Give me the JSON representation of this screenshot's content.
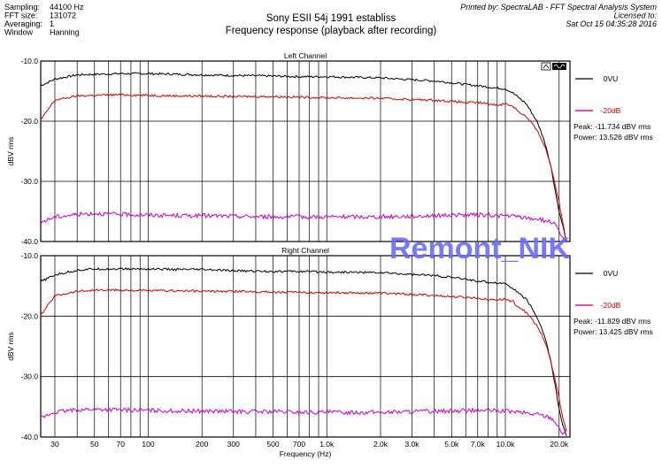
{
  "header": {
    "info": [
      {
        "label": "Sampling:",
        "value": "44100 Hz"
      },
      {
        "label": "FFT size:",
        "value": "131072"
      },
      {
        "label": "Averaging:",
        "value": "1"
      },
      {
        "label": "Window",
        "value": "Hanning"
      }
    ],
    "title": "Sony ESII 54j 1991 establiss",
    "subtitle": "Frequency response (playback after recording)",
    "printed_by": "Printed by: SpectraLAB - FFT Spectral Analysis System",
    "licensed_to": "Licensed to:",
    "date": "Sat Oct 15 04:35:28 2016"
  },
  "watermark": "Remont_NIK",
  "colors": {
    "black": "#000000",
    "red": "#d40000",
    "magenta": "#cc00cc",
    "watermark": "#6a6aff"
  },
  "chart_data": [
    {
      "type": "line",
      "title": "Left Channel",
      "xlabel": "Frequency (Hz)",
      "ylabel": "dBV rms",
      "x_scale": "log",
      "xlim": [
        25,
        23000
      ],
      "ylim": [
        -40.0,
        -10.0
      ],
      "y_ticks": [
        "-10.0",
        "-20.0",
        "-30.0",
        "-40.0"
      ],
      "x_tick_labels": [
        {
          "value": 30,
          "label": "30"
        },
        {
          "value": 50,
          "label": "50"
        },
        {
          "value": 70,
          "label": "70"
        },
        {
          "value": 100,
          "label": "100"
        },
        {
          "value": 200,
          "label": "200"
        },
        {
          "value": 300,
          "label": "300"
        },
        {
          "value": 500,
          "label": "500"
        },
        {
          "value": 700,
          "label": "700"
        },
        {
          "value": 1000,
          "label": "1.0k"
        },
        {
          "value": 2000,
          "label": "2.0k"
        },
        {
          "value": 3000,
          "label": "3.0k"
        },
        {
          "value": 5000,
          "label": "5.0k"
        },
        {
          "value": 7000,
          "label": "7.0k"
        },
        {
          "value": 10000,
          "label": "10.0k"
        },
        {
          "value": 20000,
          "label": "20.0k"
        }
      ],
      "grid": true,
      "legend_position": "right",
      "series": [
        {
          "name": "0VU",
          "color": "#000000",
          "x": [
            25,
            30,
            40,
            50,
            70,
            100,
            150,
            200,
            300,
            500,
            700,
            1000,
            2000,
            3000,
            4000,
            5000,
            6000,
            7000,
            8000,
            9000,
            10000,
            11000,
            12000,
            13000,
            14000,
            15000,
            16000,
            17000,
            18000,
            19000,
            20000,
            21000,
            22000
          ],
          "y": [
            -14.1,
            -13.0,
            -12.3,
            -12.2,
            -12.1,
            -12.1,
            -12.2,
            -12.3,
            -12.4,
            -12.5,
            -12.6,
            -12.6,
            -12.8,
            -13.1,
            -13.3,
            -13.6,
            -13.9,
            -14.1,
            -14.3,
            -14.5,
            -14.6,
            -15.3,
            -16.2,
            -17.0,
            -18.5,
            -20.0,
            -22.0,
            -24.5,
            -27.5,
            -31.5,
            -35.0,
            -37.5,
            -40.0
          ]
        },
        {
          "name": "-20dB",
          "color": "#d40000",
          "x": [
            25,
            30,
            40,
            50,
            70,
            100,
            150,
            200,
            300,
            500,
            700,
            1000,
            2000,
            3000,
            4000,
            5000,
            6000,
            7000,
            8000,
            9000,
            10000,
            11000,
            12000,
            13000,
            14000,
            15000,
            16000,
            17000,
            18000,
            19000,
            20000,
            21000,
            22000
          ],
          "y": [
            -19.8,
            -16.5,
            -15.8,
            -15.7,
            -15.6,
            -15.7,
            -15.8,
            -15.8,
            -15.9,
            -15.9,
            -16.0,
            -16.1,
            -16.2,
            -16.4,
            -16.5,
            -16.7,
            -16.9,
            -16.9,
            -17.1,
            -17.3,
            -17.1,
            -17.5,
            -18.5,
            -19.2,
            -20.3,
            -21.5,
            -23.0,
            -25.0,
            -27.5,
            -30.5,
            -33.5,
            -37.0,
            -40.0
          ]
        },
        {
          "name": "",
          "color": "#cc00cc",
          "x": [
            25,
            30,
            40,
            50,
            70,
            100,
            150,
            200,
            300,
            500,
            700,
            1000,
            2000,
            3000,
            4000,
            5000,
            6000,
            7000,
            8000,
            9000,
            10000,
            11000,
            12000,
            13000,
            14000,
            15000,
            16000,
            17000,
            18000,
            19000,
            20000,
            21000,
            22000
          ],
          "y": [
            -36.8,
            -35.9,
            -35.5,
            -35.3,
            -35.5,
            -35.6,
            -35.7,
            -35.7,
            -35.8,
            -35.9,
            -35.9,
            -35.9,
            -35.9,
            -35.8,
            -35.7,
            -35.6,
            -35.6,
            -35.6,
            -35.6,
            -35.7,
            -35.7,
            -35.8,
            -35.9,
            -36.1,
            -36.2,
            -36.2,
            -36.4,
            -36.6,
            -36.7,
            -37.3,
            -38.5,
            -39.5,
            -40.0
          ]
        }
      ],
      "legend_extra": {
        "peak": "Peak: -11.734 dBV rms",
        "power": "Power: 13.526 dBV rms"
      }
    },
    {
      "type": "line",
      "title": "Right Channel",
      "xlabel": "Frequency (Hz)",
      "ylabel": "dBV rms",
      "x_scale": "log",
      "xlim": [
        25,
        23000
      ],
      "ylim": [
        -40.0,
        -10.0
      ],
      "y_ticks": [
        "-10.0",
        "-20.0",
        "-30.0",
        "-40.0"
      ],
      "x_tick_labels": [
        {
          "value": 30,
          "label": "30"
        },
        {
          "value": 50,
          "label": "50"
        },
        {
          "value": 70,
          "label": "70"
        },
        {
          "value": 100,
          "label": "100"
        },
        {
          "value": 200,
          "label": "200"
        },
        {
          "value": 300,
          "label": "300"
        },
        {
          "value": 500,
          "label": "500"
        },
        {
          "value": 700,
          "label": "700"
        },
        {
          "value": 1000,
          "label": "1.0k"
        },
        {
          "value": 2000,
          "label": "2.0k"
        },
        {
          "value": 3000,
          "label": "3.0k"
        },
        {
          "value": 5000,
          "label": "5.0k"
        },
        {
          "value": 7000,
          "label": "7.0k"
        },
        {
          "value": 10000,
          "label": "10.0k"
        },
        {
          "value": 20000,
          "label": "20.0k"
        }
      ],
      "grid": true,
      "legend_position": "right",
      "series": [
        {
          "name": "0VU",
          "color": "#000000",
          "x": [
            25,
            30,
            40,
            50,
            70,
            100,
            150,
            200,
            300,
            500,
            700,
            1000,
            2000,
            3000,
            4000,
            5000,
            6000,
            7000,
            8000,
            9000,
            10000,
            11000,
            12000,
            13000,
            14000,
            15000,
            16000,
            17000,
            18000,
            19000,
            20000,
            21000,
            22000
          ],
          "y": [
            -14.3,
            -13.2,
            -12.4,
            -12.2,
            -12.2,
            -12.2,
            -12.3,
            -12.3,
            -12.5,
            -12.6,
            -12.6,
            -12.7,
            -12.8,
            -13.1,
            -13.3,
            -13.6,
            -13.9,
            -14.2,
            -14.4,
            -14.5,
            -14.6,
            -15.4,
            -16.3,
            -17.1,
            -18.6,
            -20.1,
            -22.0,
            -24.5,
            -27.5,
            -31.5,
            -35.5,
            -38.0,
            -40.0
          ]
        },
        {
          "name": "-20dB",
          "color": "#d40000",
          "x": [
            25,
            30,
            40,
            50,
            70,
            100,
            150,
            200,
            300,
            500,
            700,
            1000,
            2000,
            3000,
            4000,
            5000,
            6000,
            7000,
            8000,
            9000,
            10000,
            11000,
            12000,
            13000,
            14000,
            15000,
            16000,
            17000,
            18000,
            19000,
            20000,
            21000,
            22000
          ],
          "y": [
            -19.9,
            -16.6,
            -15.9,
            -15.7,
            -15.7,
            -15.8,
            -15.8,
            -15.9,
            -15.9,
            -16.0,
            -16.1,
            -16.1,
            -16.2,
            -16.4,
            -16.6,
            -16.8,
            -16.9,
            -17.0,
            -17.2,
            -17.3,
            -17.2,
            -17.6,
            -18.6,
            -19.3,
            -20.4,
            -21.6,
            -23.0,
            -25.0,
            -27.6,
            -30.6,
            -33.6,
            -37.0,
            -39.0
          ]
        },
        {
          "name": "",
          "color": "#cc00cc",
          "x": [
            25,
            30,
            40,
            50,
            70,
            100,
            150,
            200,
            300,
            500,
            700,
            1000,
            2000,
            3000,
            4000,
            5000,
            6000,
            7000,
            8000,
            9000,
            10000,
            11000,
            12000,
            13000,
            14000,
            15000,
            16000,
            17000,
            18000,
            19000,
            20000,
            21000,
            22000
          ],
          "y": [
            -36.9,
            -35.9,
            -35.5,
            -35.4,
            -35.5,
            -35.6,
            -35.7,
            -35.7,
            -35.8,
            -35.8,
            -35.9,
            -35.9,
            -35.9,
            -35.8,
            -35.7,
            -35.7,
            -35.6,
            -35.6,
            -35.6,
            -35.7,
            -35.7,
            -35.8,
            -35.9,
            -36.0,
            -36.2,
            -36.2,
            -36.4,
            -36.6,
            -36.8,
            -37.4,
            -38.6,
            -39.4,
            -39.0
          ]
        }
      ],
      "legend_extra": {
        "peak": "Peak: -11.829 dBV rms",
        "power": "Power: 13.425 dBV rms"
      }
    }
  ]
}
